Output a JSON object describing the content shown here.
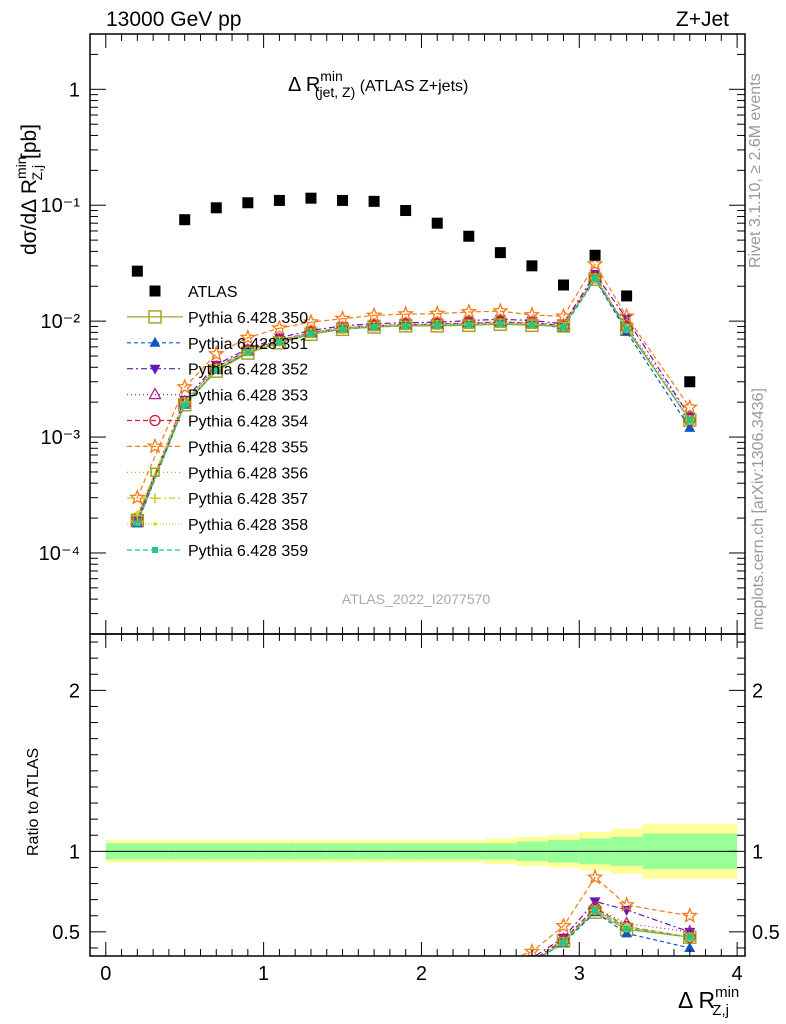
{
  "header": {
    "left": "13000 GeV pp",
    "right": "Z+Jet"
  },
  "side_labels": {
    "rivet": "Rivet 3.1.10, ≥ 2.6M events",
    "mcplots": "mcplots.cern.ch [arXiv:1306.3436]"
  },
  "watermark": "ATLAS_2022_I2077570",
  "main_title": {
    "prefix": "Δ R",
    "sup": "min",
    "sub": "(jet, Z)",
    "suffix": " (ATLAS Z+jets)"
  },
  "ylabel_main": {
    "prefix": "dσ/dΔ R",
    "sup": "min",
    "sub": "Z,j",
    "suffix": " [pb]"
  },
  "ylabel_ratio": "Ratio to ATLAS",
  "xlabel": {
    "prefix": "Δ R",
    "sup": "min",
    "sub": "Z,j"
  },
  "colors": {
    "350": "#a9a32b",
    "351": "#0e56c2",
    "352": "#6419b4",
    "353": "#b0239a",
    "354": "#d9172c",
    "355": "#f57a16",
    "356": "#8da81a",
    "357": "#d6c21a",
    "358": "#c8e01e",
    "359": "#1dca8c",
    "band_inner": "#99ff99",
    "band_outer": "#ffff99"
  },
  "chart_data": {
    "type": "scatter",
    "x": [
      0.2,
      0.5,
      0.7,
      0.9,
      1.1,
      1.3,
      1.5,
      1.7,
      1.9,
      2.1,
      2.3,
      2.5,
      2.7,
      2.9,
      3.1,
      3.3,
      3.7
    ],
    "bin_edges": [
      0.0,
      0.4,
      0.6,
      0.8,
      1.0,
      1.2,
      1.4,
      1.6,
      1.8,
      2.0,
      2.2,
      2.4,
      2.6,
      2.8,
      3.0,
      3.2,
      3.4,
      4.0
    ],
    "xlim": [
      -0.1,
      4.05
    ],
    "ylim_main": [
      2e-05,
      3.0
    ],
    "ylim_ratio": [
      0.35,
      2.35
    ],
    "log_y_main": true,
    "x_ticks": [
      "0",
      "1",
      "2",
      "3",
      "4"
    ],
    "y_ticks_main": [
      "10⁻⁴",
      "10⁻³",
      "10⁻²",
      "10⁻¹",
      "1"
    ],
    "y_ticks_ratio": [
      "0.5",
      "1",
      "2"
    ],
    "atlas": {
      "name": "ATLAS",
      "values": [
        0.027,
        0.075,
        0.095,
        0.105,
        0.11,
        0.115,
        0.11,
        0.108,
        0.09,
        0.07,
        0.054,
        0.039,
        0.03,
        0.0205,
        0.037,
        0.0165,
        0.003
      ],
      "band_inner": [
        0.05,
        0.05,
        0.05,
        0.05,
        0.05,
        0.05,
        0.05,
        0.05,
        0.05,
        0.05,
        0.05,
        0.05,
        0.06,
        0.07,
        0.08,
        0.09,
        0.11
      ],
      "band_outer": [
        0.07,
        0.07,
        0.07,
        0.07,
        0.07,
        0.07,
        0.07,
        0.07,
        0.07,
        0.07,
        0.07,
        0.08,
        0.09,
        0.1,
        0.12,
        0.14,
        0.17
      ]
    },
    "series": [
      {
        "name": "Pythia 6.428 350",
        "key": "350",
        "marker": "square-open",
        "dash": "",
        "values": [
          0.00019,
          0.0019,
          0.0037,
          0.0053,
          0.0065,
          0.0077,
          0.0085,
          0.0089,
          0.0091,
          0.0091,
          0.0092,
          0.0094,
          0.0092,
          0.0091,
          0.023,
          0.0085,
          0.0014
        ]
      },
      {
        "name": "Pythia 6.428 351",
        "key": "351",
        "marker": "triangle-up",
        "dash": "4,3",
        "values": [
          0.00018,
          0.0019,
          0.0038,
          0.0054,
          0.0066,
          0.0078,
          0.0086,
          0.009,
          0.0092,
          0.0093,
          0.0094,
          0.0096,
          0.0094,
          0.0088,
          0.023,
          0.0081,
          0.0012
        ]
      },
      {
        "name": "Pythia 6.428 352",
        "key": "352",
        "marker": "triangle-down",
        "dash": "6,3,2,3",
        "values": [
          0.0002,
          0.0021,
          0.0042,
          0.0058,
          0.0072,
          0.0083,
          0.0091,
          0.0095,
          0.0097,
          0.0098,
          0.0101,
          0.0104,
          0.0101,
          0.0095,
          0.0255,
          0.0105,
          0.0015
        ]
      },
      {
        "name": "Pythia 6.428 353",
        "key": "353",
        "marker": "triangle-up-open",
        "dash": "1,3",
        "values": [
          0.00019,
          0.002,
          0.004,
          0.0056,
          0.0069,
          0.008,
          0.0088,
          0.0092,
          0.0094,
          0.0095,
          0.0097,
          0.0099,
          0.0097,
          0.0093,
          0.024,
          0.0091,
          0.0015
        ]
      },
      {
        "name": "Pythia 6.428 354",
        "key": "354",
        "marker": "circle-open",
        "dash": "5,3",
        "values": [
          0.0002,
          0.002,
          0.004,
          0.0056,
          0.0068,
          0.008,
          0.0087,
          0.0091,
          0.0093,
          0.0094,
          0.0096,
          0.0098,
          0.0096,
          0.0092,
          0.024,
          0.0088,
          0.0014
        ]
      },
      {
        "name": "Pythia 6.428 355",
        "key": "355",
        "marker": "star-open",
        "dash": "5,3",
        "values": [
          0.0003,
          0.0027,
          0.0052,
          0.0072,
          0.0087,
          0.0098,
          0.0105,
          0.0112,
          0.0115,
          0.0116,
          0.012,
          0.0122,
          0.0113,
          0.011,
          0.031,
          0.011,
          0.0018
        ]
      },
      {
        "name": "Pythia 6.428 356",
        "key": "356",
        "marker": "square-open-small",
        "dash": "1,3",
        "values": [
          0.0002,
          0.002,
          0.0039,
          0.0055,
          0.0067,
          0.0079,
          0.0086,
          0.009,
          0.0092,
          0.0093,
          0.0094,
          0.0096,
          0.0094,
          0.009,
          0.0235,
          0.0087,
          0.0014
        ]
      },
      {
        "name": "Pythia 6.428 357",
        "key": "357",
        "marker": "cross",
        "dash": "6,3,2,3",
        "values": [
          0.00021,
          0.002,
          0.0039,
          0.0055,
          0.0067,
          0.0079,
          0.0086,
          0.009,
          0.0092,
          0.0093,
          0.0094,
          0.0096,
          0.0094,
          0.009,
          0.0235,
          0.0087,
          0.0014
        ]
      },
      {
        "name": "Pythia 6.428 358",
        "key": "358",
        "marker": "dot",
        "dash": "1,2",
        "values": [
          0.00022,
          0.002,
          0.0039,
          0.0055,
          0.0067,
          0.0079,
          0.0086,
          0.009,
          0.0092,
          0.0093,
          0.0094,
          0.0096,
          0.0094,
          0.009,
          0.0237,
          0.0088,
          0.0014
        ]
      },
      {
        "name": "Pythia 6.428 359",
        "key": "359",
        "marker": "square-small",
        "dash": "5,3",
        "values": [
          0.00018,
          0.0019,
          0.0038,
          0.0054,
          0.0066,
          0.0078,
          0.0085,
          0.0089,
          0.0091,
          0.0092,
          0.0093,
          0.0095,
          0.0093,
          0.0089,
          0.0235,
          0.0086,
          0.0014
        ]
      }
    ]
  }
}
